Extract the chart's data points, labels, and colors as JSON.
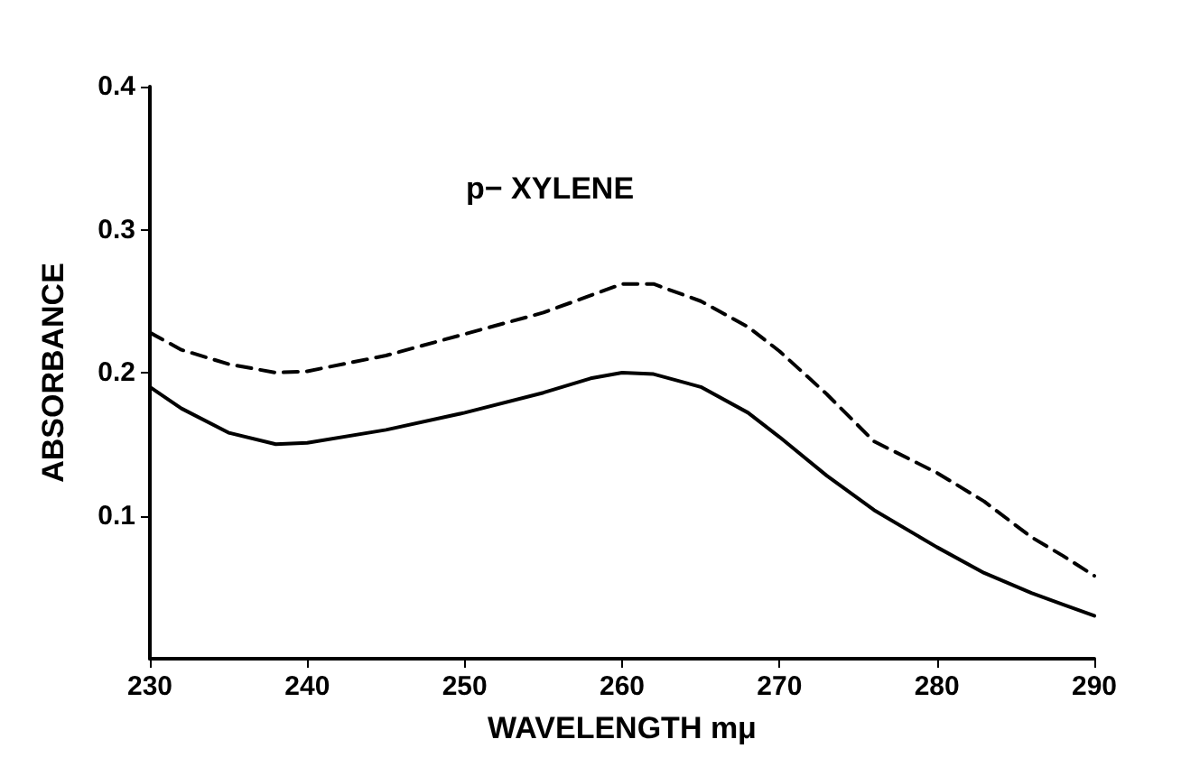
{
  "chart_data": {
    "type": "line",
    "xlabel": "WAVELENGTH mμ",
    "ylabel": "ABSORBANCE",
    "annotations": [
      "p− XYLENE"
    ],
    "xlim": [
      230,
      290
    ],
    "xticks": [
      230,
      240,
      250,
      260,
      270,
      280,
      290
    ],
    "ylim": [
      0,
      0.4
    ],
    "yticks": [
      0.1,
      0.2,
      0.3,
      0.4
    ],
    "grid": false,
    "marker": "none",
    "x": [
      230,
      232,
      235,
      238,
      240,
      245,
      250,
      255,
      258,
      260,
      262,
      265,
      268,
      270,
      273,
      276,
      280,
      283,
      286,
      288,
      290
    ],
    "series": [
      {
        "color": "#000000",
        "line_style": "solid",
        "values": [
          0.19,
          0.175,
          0.158,
          0.15,
          0.151,
          0.16,
          0.172,
          0.186,
          0.196,
          0.2,
          0.199,
          0.19,
          0.172,
          0.155,
          0.128,
          0.104,
          0.078,
          0.06,
          0.046,
          0.038,
          0.03
        ]
      },
      {
        "color": "#000000",
        "line_style": "dashed",
        "values": [
          0.228,
          0.216,
          0.206,
          0.2,
          0.201,
          0.212,
          0.227,
          0.242,
          0.254,
          0.262,
          0.262,
          0.25,
          0.232,
          0.215,
          0.185,
          0.152,
          0.13,
          0.11,
          0.085,
          0.072,
          0.058
        ]
      }
    ]
  }
}
